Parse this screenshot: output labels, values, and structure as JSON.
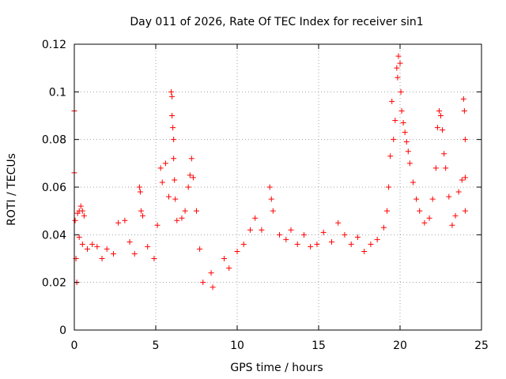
{
  "chart_data": {
    "type": "scatter",
    "title": "Day 011 of 2026, Rate Of TEC Index for receiver sin1",
    "xlabel": "GPS time / hours",
    "ylabel": "ROTI / TECUs",
    "xlim": [
      0,
      25
    ],
    "ylim": [
      0,
      0.12
    ],
    "x_ticks": [
      0,
      5,
      10,
      15,
      20,
      25
    ],
    "x_tick_labels": [
      "0",
      "5",
      "10",
      "15",
      "20",
      "25"
    ],
    "y_ticks": [
      0,
      0.02,
      0.04,
      0.06,
      0.08,
      0.1,
      0.12
    ],
    "y_tick_labels": [
      "0",
      "0.02",
      "0.04",
      "0.06",
      "0.08",
      "0.1",
      "0.12"
    ],
    "grid": true,
    "marker": "plus",
    "color": "#ff0000",
    "series": [
      {
        "points": [
          [
            0.0,
            0.092
          ],
          [
            0.0,
            0.066
          ],
          [
            0.05,
            0.046
          ],
          [
            0.1,
            0.03
          ],
          [
            0.15,
            0.02
          ],
          [
            0.2,
            0.049
          ],
          [
            0.3,
            0.05
          ],
          [
            0.4,
            0.052
          ],
          [
            0.5,
            0.05
          ],
          [
            0.6,
            0.048
          ],
          [
            0.3,
            0.039
          ],
          [
            0.5,
            0.036
          ],
          [
            0.8,
            0.034
          ],
          [
            1.1,
            0.036
          ],
          [
            1.4,
            0.035
          ],
          [
            1.7,
            0.03
          ],
          [
            2.0,
            0.034
          ],
          [
            2.4,
            0.032
          ],
          [
            2.7,
            0.045
          ],
          [
            3.1,
            0.046
          ],
          [
            3.4,
            0.037
          ],
          [
            3.7,
            0.032
          ],
          [
            4.0,
            0.06
          ],
          [
            4.05,
            0.058
          ],
          [
            4.1,
            0.05
          ],
          [
            4.2,
            0.048
          ],
          [
            4.5,
            0.035
          ],
          [
            4.9,
            0.03
          ],
          [
            5.1,
            0.044
          ],
          [
            5.3,
            0.068
          ],
          [
            5.4,
            0.062
          ],
          [
            5.6,
            0.07
          ],
          [
            5.8,
            0.056
          ],
          [
            5.95,
            0.1
          ],
          [
            6.0,
            0.098
          ],
          [
            6.0,
            0.09
          ],
          [
            6.05,
            0.085
          ],
          [
            6.1,
            0.08
          ],
          [
            6.1,
            0.072
          ],
          [
            6.15,
            0.063
          ],
          [
            6.2,
            0.055
          ],
          [
            6.3,
            0.046
          ],
          [
            6.6,
            0.047
          ],
          [
            6.8,
            0.05
          ],
          [
            7.0,
            0.06
          ],
          [
            7.1,
            0.065
          ],
          [
            7.2,
            0.072
          ],
          [
            7.3,
            0.064
          ],
          [
            7.5,
            0.05
          ],
          [
            7.7,
            0.034
          ],
          [
            7.9,
            0.02
          ],
          [
            8.4,
            0.024
          ],
          [
            8.5,
            0.018
          ],
          [
            9.2,
            0.03
          ],
          [
            9.5,
            0.026
          ],
          [
            10.0,
            0.033
          ],
          [
            10.4,
            0.036
          ],
          [
            10.8,
            0.042
          ],
          [
            11.1,
            0.047
          ],
          [
            11.5,
            0.042
          ],
          [
            12.0,
            0.06
          ],
          [
            12.1,
            0.055
          ],
          [
            12.2,
            0.05
          ],
          [
            12.6,
            0.04
          ],
          [
            13.0,
            0.038
          ],
          [
            13.3,
            0.042
          ],
          [
            13.7,
            0.036
          ],
          [
            14.1,
            0.04
          ],
          [
            14.5,
            0.035
          ],
          [
            14.9,
            0.036
          ],
          [
            15.3,
            0.041
          ],
          [
            15.8,
            0.037
          ],
          [
            16.2,
            0.045
          ],
          [
            16.6,
            0.04
          ],
          [
            17.0,
            0.036
          ],
          [
            17.4,
            0.039
          ],
          [
            17.8,
            0.033
          ],
          [
            18.2,
            0.036
          ],
          [
            18.6,
            0.038
          ],
          [
            19.0,
            0.043
          ],
          [
            19.2,
            0.05
          ],
          [
            19.3,
            0.06
          ],
          [
            19.4,
            0.073
          ],
          [
            19.5,
            0.096
          ],
          [
            19.6,
            0.08
          ],
          [
            19.7,
            0.088
          ],
          [
            19.8,
            0.11
          ],
          [
            19.85,
            0.106
          ],
          [
            19.9,
            0.115
          ],
          [
            20.0,
            0.112
          ],
          [
            20.05,
            0.1
          ],
          [
            20.1,
            0.092
          ],
          [
            20.2,
            0.087
          ],
          [
            20.3,
            0.083
          ],
          [
            20.4,
            0.079
          ],
          [
            20.5,
            0.075
          ],
          [
            20.6,
            0.07
          ],
          [
            20.8,
            0.062
          ],
          [
            21.0,
            0.055
          ],
          [
            21.2,
            0.05
          ],
          [
            21.5,
            0.045
          ],
          [
            21.8,
            0.047
          ],
          [
            22.0,
            0.055
          ],
          [
            22.2,
            0.068
          ],
          [
            22.3,
            0.085
          ],
          [
            22.4,
            0.092
          ],
          [
            22.5,
            0.09
          ],
          [
            22.6,
            0.084
          ],
          [
            22.7,
            0.074
          ],
          [
            22.8,
            0.068
          ],
          [
            23.0,
            0.056
          ],
          [
            23.2,
            0.044
          ],
          [
            23.4,
            0.048
          ],
          [
            23.6,
            0.058
          ],
          [
            23.8,
            0.063
          ],
          [
            23.9,
            0.097
          ],
          [
            23.95,
            0.092
          ],
          [
            24.0,
            0.08
          ],
          [
            24.0,
            0.064
          ],
          [
            24.0,
            0.05
          ]
        ]
      }
    ]
  }
}
